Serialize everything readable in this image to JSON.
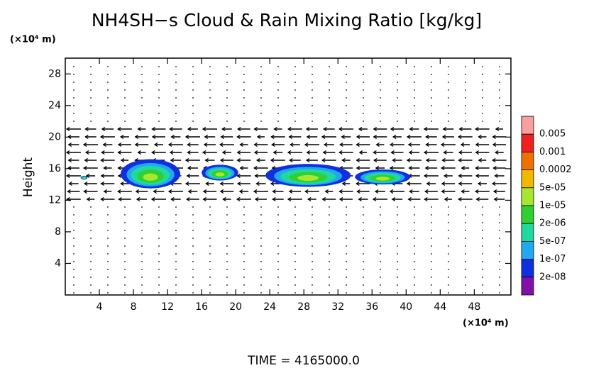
{
  "chart_data": {
    "type": "field",
    "title": "NH4SH−s Cloud & Rain Mixing Ratio [kg/kg]",
    "y_unit": "(×10⁴ m)",
    "x_unit": "(×10⁴ m)",
    "ylabel": "Height",
    "annotation": "TIME = 4165000.0",
    "xlim": [
      0,
      52.3
    ],
    "ylim": [
      0,
      30
    ],
    "xticks": [
      4,
      8,
      12,
      16,
      20,
      24,
      28,
      32,
      36,
      40,
      44,
      48
    ],
    "yticks": [
      4,
      8,
      12,
      16,
      20,
      24,
      28
    ],
    "colorbar": {
      "labels": [
        "0.005",
        "0.001",
        "0.0002",
        "5e-05",
        "1e-05",
        "2e-06",
        "5e-07",
        "1e-07",
        "2e-08"
      ],
      "colors": [
        "#f8a0a0",
        "#f02020",
        "#f07000",
        "#f0b800",
        "#a8e632",
        "#30d030",
        "#20d8a0",
        "#20a8f0",
        "#1030e0",
        "#8010a8"
      ]
    },
    "cloud_regions": [
      {
        "x": [
          6.5,
          13.5
        ],
        "y": [
          13.5,
          17.2
        ]
      },
      {
        "x": [
          16,
          20.3
        ],
        "y": [
          14.5,
          16.5
        ]
      },
      {
        "x": [
          23.5,
          33.5
        ],
        "y": [
          13.7,
          16.6
        ]
      },
      {
        "x": [
          34,
          40.5
        ],
        "y": [
          14,
          15.9
        ]
      },
      {
        "x": [
          1.8,
          2.6
        ],
        "y": [
          14.6,
          15.1
        ]
      }
    ]
  }
}
